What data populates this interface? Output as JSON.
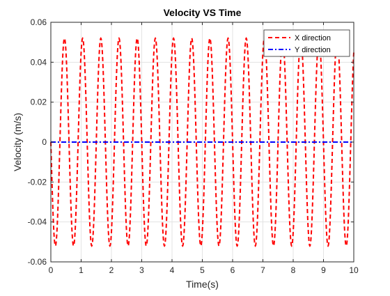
{
  "chart_data": {
    "type": "line",
    "title": "Velocity VS Time",
    "xlabel": "Time(s)",
    "ylabel": "Velocity (m/s)",
    "xlim": [
      0,
      10
    ],
    "ylim": [
      -0.06,
      0.06
    ],
    "xticks": [
      0,
      1,
      2,
      3,
      4,
      5,
      6,
      7,
      8,
      9,
      10
    ],
    "yticks": [
      -0.06,
      -0.04,
      -0.02,
      0,
      0.02,
      0.04,
      0.06
    ],
    "xtick_labels": [
      "0",
      "1",
      "2",
      "3",
      "4",
      "5",
      "6",
      "7",
      "8",
      "9",
      "10"
    ],
    "ytick_labels": [
      "-0.06",
      "-0.04",
      "-0.02",
      "0",
      "0.02",
      "0.04",
      "0.06"
    ],
    "grid": true,
    "legend_position": "top-right",
    "series": [
      {
        "name": "X direction",
        "color": "#ff0000",
        "style": "dashed",
        "function": "sine",
        "amplitude": 0.052,
        "period": 0.6,
        "phase_at_zero": "descending through 0"
      },
      {
        "name": "Y direction",
        "color": "#0000ff",
        "style": "dash-dot",
        "function": "constant",
        "value": 0
      }
    ]
  }
}
